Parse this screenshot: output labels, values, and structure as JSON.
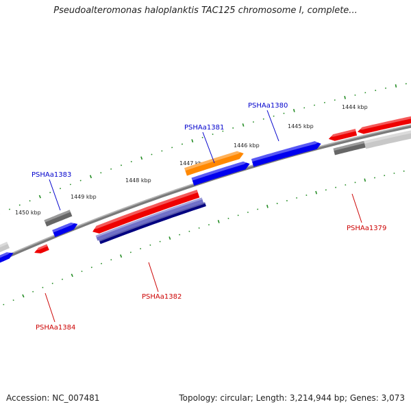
{
  "title": "Pseudoalteromonas haloplanktis TAC125 chromosome I, complete...",
  "footer": {
    "accession": "Accession: NC_007481",
    "topology": "Topology: circular; Length: 3,214,944 bp; Genes: 3,073"
  },
  "colors": {
    "forward_gene": "#0000ee",
    "reverse_gene": "#ee0000",
    "highlight_gene": "#ff8800",
    "rna_gene": "#666666",
    "pseudo_gene": "#c8c8c8",
    "selected_gene": "#000080",
    "backbone": "#888888",
    "tick": "#228b22",
    "forward_label": "#0000cc",
    "reverse_label": "#cc0000"
  },
  "scale": {
    "ticks": [
      "1450 kbp",
      "1449 kbp",
      "1448 kbp",
      "1447 kbp",
      "1446 kbp",
      "1445 kbp",
      "1444 kbp"
    ]
  },
  "genes": {
    "forward_labels": [
      "PSHAa1383",
      "PSHAa1381",
      "PSHAa1380"
    ],
    "reverse_labels": [
      "PSHAa1384",
      "PSHAa1382",
      "PSHAa1379"
    ]
  }
}
